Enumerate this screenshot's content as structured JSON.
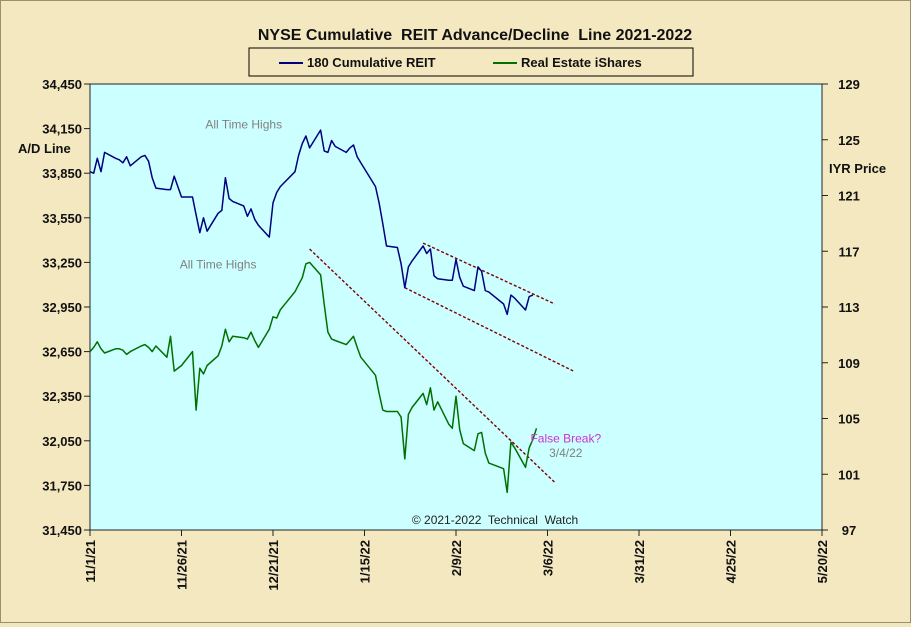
{
  "chart_data": {
    "type": "line",
    "title": "NYSE Cumulative  REIT Advance/Decline  Line 2021-2022",
    "ylabel_left": "A/D Line",
    "ylabel_right": "IYR Price",
    "x_ticks": [
      "11/1/21",
      "11/26/21",
      "12/21/21",
      "1/15/22",
      "2/9/22",
      "3/6/22",
      "3/31/22",
      "4/25/22",
      "5/20/22"
    ],
    "x_tick_dates": [
      "2021-11-01",
      "2021-11-26",
      "2021-12-21",
      "2022-01-15",
      "2022-02-09",
      "2022-03-06",
      "2022-03-31",
      "2022-04-25",
      "2022-05-20"
    ],
    "xlim": [
      "2021-11-01",
      "2022-05-20"
    ],
    "ylim_left": [
      31450,
      34450
    ],
    "ylim_right": [
      97,
      129
    ],
    "y_ticks_left": [
      "34,450",
      "34,150",
      "33,850",
      "33,550",
      "33,250",
      "32,950",
      "32,650",
      "32,350",
      "32,050",
      "31,750",
      "31,450"
    ],
    "y_ticks_right": [
      "129",
      "125",
      "121",
      "117",
      "113",
      "109",
      "105",
      "101",
      "97"
    ],
    "grid": false,
    "legend_position": "top-center",
    "plot_background": "#ccffff",
    "series": [
      {
        "name": "180 Cumulative REIT",
        "axis": "left",
        "color": "#000080",
        "points": [
          [
            "2021-11-01",
            33860
          ],
          [
            "2021-11-02",
            33850
          ],
          [
            "2021-11-03",
            33950
          ],
          [
            "2021-11-04",
            33860
          ],
          [
            "2021-11-05",
            33990
          ],
          [
            "2021-11-08",
            33950
          ],
          [
            "2021-11-09",
            33940
          ],
          [
            "2021-11-10",
            33920
          ],
          [
            "2021-11-11",
            33960
          ],
          [
            "2021-11-12",
            33900
          ],
          [
            "2021-11-15",
            33960
          ],
          [
            "2021-11-16",
            33970
          ],
          [
            "2021-11-17",
            33930
          ],
          [
            "2021-11-18",
            33820
          ],
          [
            "2021-11-19",
            33750
          ],
          [
            "2021-11-22",
            33740
          ],
          [
            "2021-11-23",
            33740
          ],
          [
            "2021-11-24",
            33830
          ],
          [
            "2021-11-26",
            33690
          ],
          [
            "2021-11-29",
            33690
          ],
          [
            "2021-11-30",
            33570
          ],
          [
            "2021-12-01",
            33450
          ],
          [
            "2021-12-02",
            33550
          ],
          [
            "2021-12-03",
            33460
          ],
          [
            "2021-12-06",
            33580
          ],
          [
            "2021-12-07",
            33600
          ],
          [
            "2021-12-08",
            33820
          ],
          [
            "2021-12-09",
            33680
          ],
          [
            "2021-12-10",
            33660
          ],
          [
            "2021-12-13",
            33630
          ],
          [
            "2021-12-14",
            33560
          ],
          [
            "2021-12-15",
            33610
          ],
          [
            "2021-12-16",
            33540
          ],
          [
            "2021-12-17",
            33500
          ],
          [
            "2021-12-20",
            33420
          ],
          [
            "2021-12-21",
            33650
          ],
          [
            "2021-12-22",
            33720
          ],
          [
            "2021-12-23",
            33760
          ],
          [
            "2021-12-27",
            33860
          ],
          [
            "2021-12-28",
            33970
          ],
          [
            "2021-12-29",
            34050
          ],
          [
            "2021-12-30",
            34100
          ],
          [
            "2021-12-31",
            34020
          ],
          [
            "2022-01-03",
            34140
          ],
          [
            "2022-01-04",
            34000
          ],
          [
            "2022-01-05",
            33990
          ],
          [
            "2022-01-06",
            34070
          ],
          [
            "2022-01-07",
            34030
          ],
          [
            "2022-01-10",
            33990
          ],
          [
            "2022-01-11",
            34020
          ],
          [
            "2022-01-12",
            34040
          ],
          [
            "2022-01-13",
            33960
          ],
          [
            "2022-01-14",
            33920
          ],
          [
            "2022-01-18",
            33760
          ],
          [
            "2022-01-19",
            33650
          ],
          [
            "2022-01-20",
            33510
          ],
          [
            "2022-01-21",
            33360
          ],
          [
            "2022-01-24",
            33350
          ],
          [
            "2022-01-25",
            33240
          ],
          [
            "2022-01-26",
            33080
          ],
          [
            "2022-01-27",
            33220
          ],
          [
            "2022-01-28",
            33260
          ],
          [
            "2022-01-31",
            33360
          ],
          [
            "2022-02-01",
            33310
          ],
          [
            "2022-02-02",
            33340
          ],
          [
            "2022-02-03",
            33160
          ],
          [
            "2022-02-04",
            33140
          ],
          [
            "2022-02-07",
            33130
          ],
          [
            "2022-02-08",
            33130
          ],
          [
            "2022-02-09",
            33270
          ],
          [
            "2022-02-10",
            33150
          ],
          [
            "2022-02-11",
            33090
          ],
          [
            "2022-02-14",
            33060
          ],
          [
            "2022-02-15",
            33220
          ],
          [
            "2022-02-16",
            33190
          ],
          [
            "2022-02-17",
            33060
          ],
          [
            "2022-02-18",
            33050
          ],
          [
            "2022-02-22",
            32970
          ],
          [
            "2022-02-23",
            32900
          ],
          [
            "2022-02-24",
            33030
          ],
          [
            "2022-02-25",
            33010
          ],
          [
            "2022-02-28",
            32930
          ],
          [
            "2022-03-01",
            33020
          ],
          [
            "2022-03-02",
            33030
          ]
        ]
      },
      {
        "name": "Real Estate iShares",
        "axis": "right",
        "color": "#007000",
        "points": [
          [
            "2021-11-01",
            109.8
          ],
          [
            "2021-11-02",
            110.1
          ],
          [
            "2021-11-03",
            110.5
          ],
          [
            "2021-11-04",
            110.0
          ],
          [
            "2021-11-05",
            109.7
          ],
          [
            "2021-11-08",
            110.0
          ],
          [
            "2021-11-09",
            110.0
          ],
          [
            "2021-11-10",
            109.9
          ],
          [
            "2021-11-11",
            109.6
          ],
          [
            "2021-11-12",
            109.8
          ],
          [
            "2021-11-15",
            110.2
          ],
          [
            "2021-11-16",
            110.3
          ],
          [
            "2021-11-17",
            110.1
          ],
          [
            "2021-11-18",
            109.8
          ],
          [
            "2021-11-19",
            110.2
          ],
          [
            "2021-11-22",
            109.4
          ],
          [
            "2021-11-23",
            110.9
          ],
          [
            "2021-11-24",
            108.4
          ],
          [
            "2021-11-26",
            108.8
          ],
          [
            "2021-11-29",
            109.8
          ],
          [
            "2021-11-30",
            105.6
          ],
          [
            "2021-12-01",
            108.6
          ],
          [
            "2021-12-02",
            108.2
          ],
          [
            "2021-12-03",
            108.8
          ],
          [
            "2021-12-06",
            109.5
          ],
          [
            "2021-12-07",
            110.2
          ],
          [
            "2021-12-08",
            111.4
          ],
          [
            "2021-12-09",
            110.5
          ],
          [
            "2021-12-10",
            110.9
          ],
          [
            "2021-12-13",
            110.8
          ],
          [
            "2021-12-14",
            110.7
          ],
          [
            "2021-12-15",
            111.2
          ],
          [
            "2021-12-16",
            110.6
          ],
          [
            "2021-12-17",
            110.1
          ],
          [
            "2021-12-20",
            111.4
          ],
          [
            "2021-12-21",
            112.3
          ],
          [
            "2021-12-22",
            112.2
          ],
          [
            "2021-12-23",
            112.8
          ],
          [
            "2021-12-27",
            114.1
          ],
          [
            "2021-12-28",
            114.6
          ],
          [
            "2021-12-29",
            115.1
          ],
          [
            "2021-12-30",
            116.1
          ],
          [
            "2021-12-31",
            116.2
          ],
          [
            "2022-01-03",
            115.3
          ],
          [
            "2022-01-04",
            113.2
          ],
          [
            "2022-01-05",
            111.2
          ],
          [
            "2022-01-06",
            110.7
          ],
          [
            "2022-01-07",
            110.6
          ],
          [
            "2022-01-10",
            110.3
          ],
          [
            "2022-01-11",
            110.6
          ],
          [
            "2022-01-12",
            110.9
          ],
          [
            "2022-01-13",
            110.1
          ],
          [
            "2022-01-14",
            109.4
          ],
          [
            "2022-01-18",
            108.1
          ],
          [
            "2022-01-19",
            106.8
          ],
          [
            "2022-01-20",
            105.6
          ],
          [
            "2022-01-21",
            105.5
          ],
          [
            "2022-01-24",
            105.5
          ],
          [
            "2022-01-25",
            105.1
          ],
          [
            "2022-01-26",
            102.1
          ],
          [
            "2022-01-27",
            105.3
          ],
          [
            "2022-01-28",
            105.8
          ],
          [
            "2022-01-31",
            106.8
          ],
          [
            "2022-02-01",
            106.0
          ],
          [
            "2022-02-02",
            107.2
          ],
          [
            "2022-02-03",
            105.6
          ],
          [
            "2022-02-04",
            106.2
          ],
          [
            "2022-02-07",
            104.6
          ],
          [
            "2022-02-08",
            104.3
          ],
          [
            "2022-02-09",
            106.6
          ],
          [
            "2022-02-10",
            104.2
          ],
          [
            "2022-02-11",
            103.2
          ],
          [
            "2022-02-14",
            102.7
          ],
          [
            "2022-02-15",
            103.9
          ],
          [
            "2022-02-16",
            104.0
          ],
          [
            "2022-02-17",
            102.5
          ],
          [
            "2022-02-18",
            101.8
          ],
          [
            "2022-02-22",
            101.4
          ],
          [
            "2022-02-23",
            99.7
          ],
          [
            "2022-02-24",
            103.3
          ],
          [
            "2022-02-25",
            102.9
          ],
          [
            "2022-02-28",
            101.5
          ],
          [
            "2022-03-01",
            102.9
          ],
          [
            "2022-03-02",
            103.5
          ],
          [
            "2022-03-03",
            104.3
          ]
        ]
      }
    ],
    "trend_lines": [
      {
        "name": "ad-channel-upper",
        "axis": "left",
        "color": "#800000",
        "from": [
          "2022-01-31",
          33380
        ],
        "to": [
          "2022-03-08",
          32970
        ]
      },
      {
        "name": "ad-channel-lower",
        "axis": "left",
        "color": "#800000",
        "from": [
          "2022-01-26",
          33080
        ],
        "to": [
          "2022-03-13",
          32520
        ]
      },
      {
        "name": "iyr-downtrend",
        "axis": "left",
        "color": "#800000",
        "from": [
          "2021-12-31",
          33340
        ],
        "to": [
          "2022-03-08",
          31770
        ]
      }
    ],
    "annotations": [
      {
        "name": "all-time-highs-ad",
        "text": "All Time Highs",
        "x": "2021-12-13",
        "y_left": 34150,
        "color": "#808080"
      },
      {
        "name": "all-time-highs-iyr",
        "text": "All Time Highs",
        "x": "2021-12-06",
        "y_left": 33210,
        "color": "#808080"
      },
      {
        "name": "false-break",
        "text": "False Break?",
        "x": "2022-03-11",
        "y_left": 32040,
        "color": "#cc33cc"
      },
      {
        "name": "false-break-date",
        "text": "3/4/22",
        "x": "2022-03-11",
        "y_left": 31940,
        "color": "#808080"
      }
    ],
    "copyright": "© 2021-2022  Technical  Watch"
  }
}
